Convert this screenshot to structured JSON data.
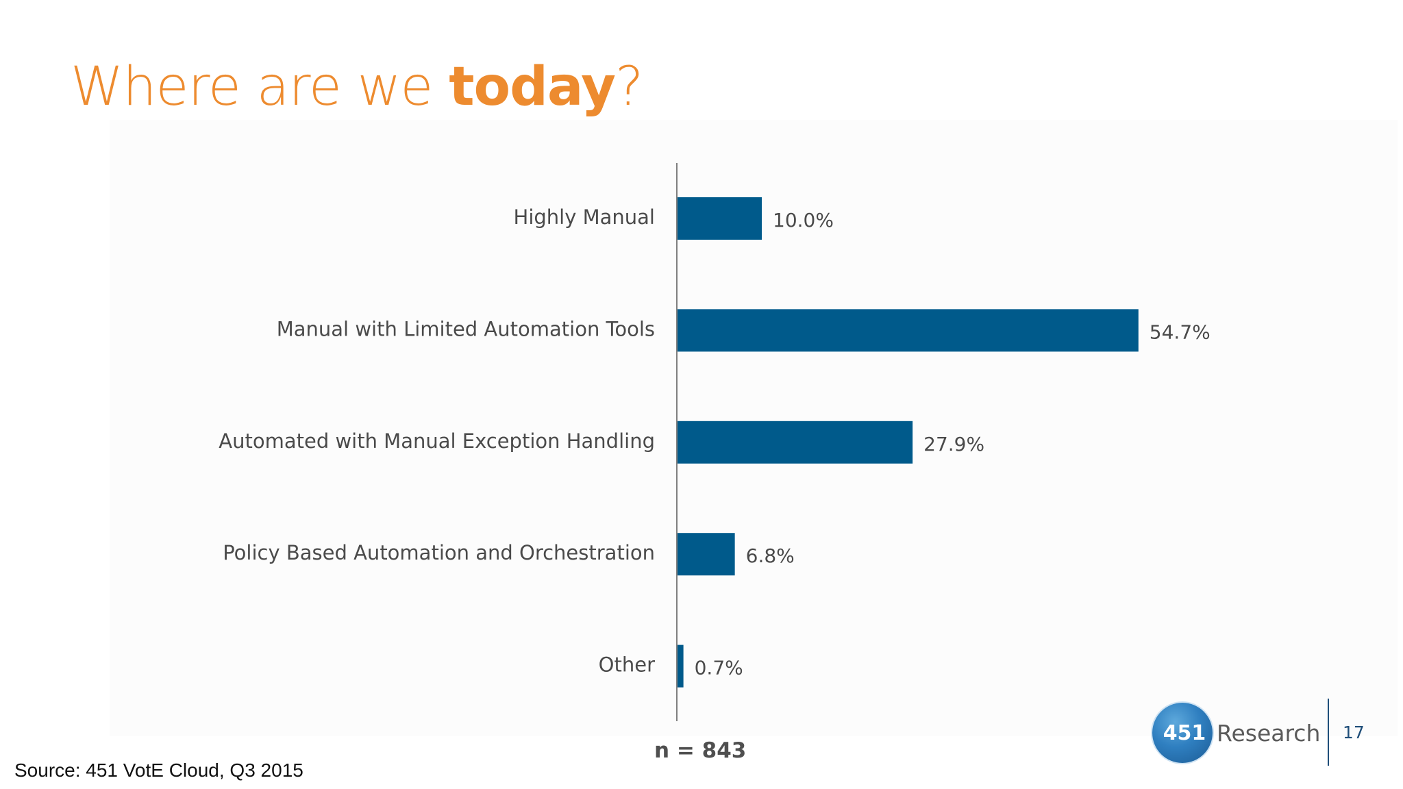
{
  "title": {
    "prefix": "Where are we ",
    "emphasis": "today",
    "suffix": "?"
  },
  "chart_data": {
    "type": "bar",
    "orientation": "horizontal",
    "categories": [
      "Highly Manual",
      "Manual with Limited Automation Tools",
      "Automated with Manual Exception Handling",
      "Policy Based Automation and Orchestration",
      "Other"
    ],
    "values": [
      10.0,
      54.7,
      27.9,
      6.8,
      0.7
    ],
    "value_labels": [
      "10.0%",
      "54.7%",
      "27.9%",
      "6.8%",
      "0.7%"
    ],
    "unit": "%",
    "xlim": [
      0,
      60
    ],
    "grid": false,
    "legend": "none",
    "bar_color": "#005A8B"
  },
  "sample_size": "n = 843",
  "source": "Source: 451 VotE Cloud, Q3 2015",
  "brand": {
    "logo_number": "451",
    "logo_word": "Research",
    "logo_icon": "451-research-logo-icon"
  },
  "page_number": "17",
  "colors": {
    "title": "#ED8B2F",
    "bar": "#005A8B",
    "axis": "#7f7f7f",
    "text": "#4a4a4a",
    "brand_line": "#1f4e79"
  }
}
